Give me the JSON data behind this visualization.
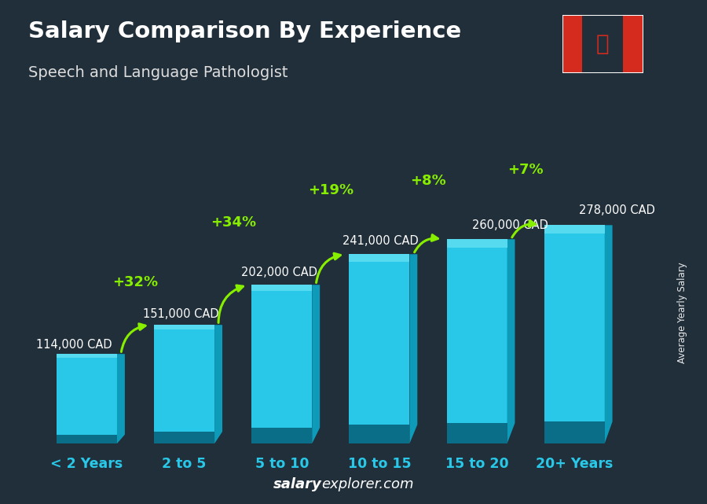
{
  "title": "Salary Comparison By Experience",
  "subtitle": "Speech and Language Pathologist",
  "categories": [
    "< 2 Years",
    "2 to 5",
    "5 to 10",
    "10 to 15",
    "15 to 20",
    "20+ Years"
  ],
  "values": [
    114000,
    151000,
    202000,
    241000,
    260000,
    278000
  ],
  "salary_labels": [
    "114,000 CAD",
    "151,000 CAD",
    "202,000 CAD",
    "241,000 CAD",
    "260,000 CAD",
    "278,000 CAD"
  ],
  "pct_changes": [
    "+32%",
    "+34%",
    "+19%",
    "+8%",
    "+7%"
  ],
  "bar_color_face": "#29c8e8",
  "bar_color_side": "#0e9bba",
  "bar_color_top": "#55daf0",
  "bar_color_dark_bottom": "#0a6e88",
  "bg_color": "#2a3540",
  "title_color": "#ffffff",
  "subtitle_color": "#dddddd",
  "salary_label_color": "#ffffff",
  "pct_color": "#88ee00",
  "xtick_color": "#29c8e8",
  "watermark_salary_color": "#ffffff",
  "watermark_explorer_color": "#ffffff",
  "side_label": "Average Yearly Salary",
  "watermark_bold": "salary",
  "watermark_rest": "explorer.com",
  "figwidth": 9.0,
  "figheight": 6.41,
  "bar_width": 0.62,
  "ylim_factor": 1.5
}
